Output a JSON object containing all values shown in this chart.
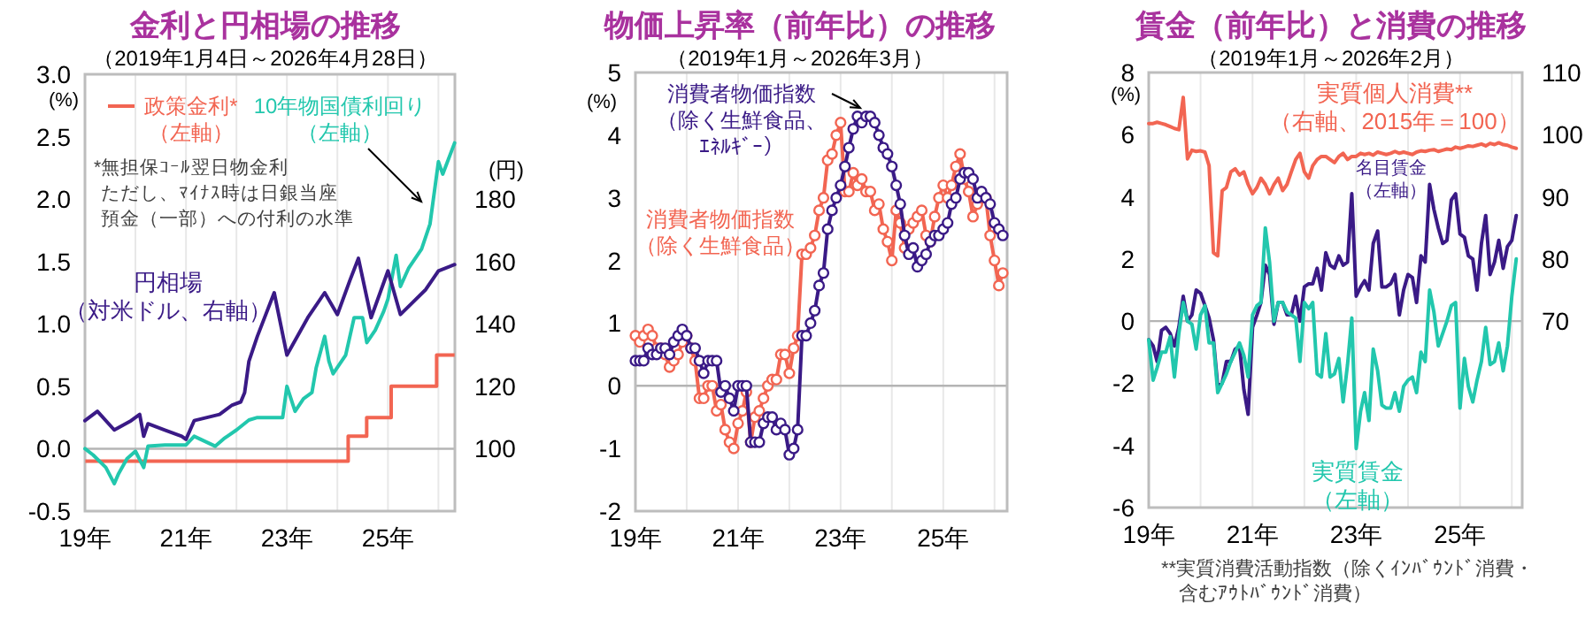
{
  "chart_data": [
    {
      "type": "line",
      "title": "金利と円相場の推移",
      "subtitle": "（2019年1月4日～2026年4月28日）",
      "ylabel": "(%)",
      "y2label": "(円)",
      "xlim": [
        "2019-01-01",
        "2026-04-30"
      ],
      "xticks": [
        {
          "value": "2019-01-01",
          "label": "19年"
        },
        {
          "value": "2020-01-01",
          "label": null
        },
        {
          "value": "2021-01-01",
          "label": "21年"
        },
        {
          "value": "2022-01-01",
          "label": null
        },
        {
          "value": "2023-01-01",
          "label": "23年"
        },
        {
          "value": "2024-01-01",
          "label": null
        },
        {
          "value": "2025-01-01",
          "label": "25年"
        },
        {
          "value": "2026-01-01",
          "label": null
        }
      ],
      "ylim": [
        -0.5,
        3
      ],
      "yticks": [
        {
          "value": -0.5,
          "label": "-0.5"
        },
        {
          "value": 0,
          "label": "0.0"
        },
        {
          "value": 0.5,
          "label": "0.5"
        },
        {
          "value": 1,
          "label": "1.0"
        },
        {
          "value": 1.5,
          "label": "1.5"
        },
        {
          "value": 2,
          "label": "2.0"
        },
        {
          "value": 2.5,
          "label": "2.5"
        },
        {
          "value": 3,
          "label": "3.0"
        }
      ],
      "y2lim": [
        80,
        220
      ],
      "y2ticks": [
        100,
        120,
        140,
        160,
        180
      ],
      "grid": "x",
      "marker": "none",
      "ref_lines": [
        {
          "axis": "y",
          "value": 0,
          "color": "#b4b4b4"
        }
      ],
      "annotations": [
        "*無担保ｺｰﾙ翌日物金利ただし、ﾏｲﾅｽ時は日銀当座預金（一部）への付利の水準"
      ],
      "series": [
        {
          "name": "政策金利*（左軸）",
          "type": "step",
          "color": "#f26552",
          "x": [
            "2019-01-04",
            "2024-03-19",
            "2024-07-31",
            "2025-01-24",
            "2025-12-19",
            "2026-04-28"
          ],
          "values": [
            -0.1,
            0.1,
            0.25,
            0.5,
            0.75,
            0.75
          ]
        },
        {
          "name": "10年物国債利回り（左軸）",
          "color": "#22c7ad",
          "x": [
            "2019-01",
            "2019-03",
            "2019-06",
            "2019-08",
            "2019-09",
            "2019-11",
            "2020-01",
            "2020-03",
            "2020-04",
            "2020-08",
            "2021-01",
            "2021-03",
            "2021-08",
            "2021-10",
            "2022-01",
            "2022-04",
            "2022-06",
            "2022-09",
            "2022-12",
            "2023-01",
            "2023-03",
            "2023-05",
            "2023-07",
            "2023-08",
            "2023-10",
            "2023-11",
            "2023-12",
            "2024-03",
            "2024-05",
            "2024-07",
            "2024-08",
            "2024-10",
            "2024-12",
            "2025-01",
            "2025-03",
            "2025-04",
            "2025-06",
            "2025-09",
            "2025-11",
            "2026-01",
            "2026-02",
            "2026-04-28"
          ],
          "values": [
            0.0,
            -0.05,
            -0.15,
            -0.28,
            -0.2,
            -0.08,
            -0.02,
            -0.15,
            0.02,
            0.03,
            0.03,
            0.1,
            0.02,
            0.08,
            0.15,
            0.23,
            0.25,
            0.25,
            0.25,
            0.5,
            0.3,
            0.4,
            0.45,
            0.65,
            0.9,
            0.7,
            0.6,
            0.75,
            1.05,
            1.05,
            0.85,
            0.95,
            1.1,
            1.2,
            1.55,
            1.3,
            1.45,
            1.6,
            1.8,
            2.3,
            2.2,
            2.45
          ]
        },
        {
          "name": "円相場（対米ドル、右軸）",
          "color": "#3a1a86",
          "axis": "y2",
          "x": [
            "2019-01",
            "2019-04",
            "2019-08",
            "2019-12",
            "2020-02",
            "2020-03",
            "2020-04",
            "2020-08",
            "2020-12",
            "2021-01",
            "2021-03",
            "2021-06",
            "2021-09",
            "2021-12",
            "2022-02",
            "2022-03",
            "2022-04",
            "2022-06",
            "2022-10",
            "2023-01",
            "2023-06",
            "2023-10",
            "2024-01",
            "2024-04",
            "2024-06",
            "2024-09",
            "2025-01",
            "2025-04",
            "2025-07",
            "2025-10",
            "2026-01",
            "2026-04-28"
          ],
          "values": [
            109,
            112,
            106,
            109,
            111,
            104,
            108,
            106,
            104,
            103,
            109,
            110,
            111,
            114,
            115,
            118,
            128,
            136,
            150,
            130,
            142,
            150,
            143,
            154,
            161,
            142,
            157,
            143,
            147,
            151,
            157,
            159
          ]
        }
      ]
    },
    {
      "type": "line",
      "title": "物価上昇率（前年比）の推移",
      "subtitle": "（2019年1月～2026年3月）",
      "ylabel": "(%)",
      "xlim": [
        "2019-01-01",
        "2026-04-01"
      ],
      "xticks": [
        {
          "value": "2019-01-01",
          "label": "19年"
        },
        {
          "value": "2020-01-01",
          "label": null
        },
        {
          "value": "2021-01-01",
          "label": "21年"
        },
        {
          "value": "2022-01-01",
          "label": null
        },
        {
          "value": "2023-01-01",
          "label": "23年"
        },
        {
          "value": "2024-01-01",
          "label": null
        },
        {
          "value": "2025-01-01",
          "label": "25年"
        },
        {
          "value": "2026-01-01",
          "label": null
        }
      ],
      "ylim": [
        -2,
        5
      ],
      "yticks": [
        -2,
        -1,
        0,
        1,
        2,
        3,
        4,
        5
      ],
      "grid": "x",
      "marker": "circle",
      "ref_lines": [
        {
          "axis": "y",
          "value": 0,
          "color": "#b4b4b4"
        }
      ],
      "x": [
        "2019-01",
        "2019-02",
        "2019-03",
        "2019-04",
        "2019-05",
        "2019-06",
        "2019-07",
        "2019-08",
        "2019-09",
        "2019-10",
        "2019-11",
        "2019-12",
        "2020-01",
        "2020-02",
        "2020-03",
        "2020-04",
        "2020-05",
        "2020-06",
        "2020-07",
        "2020-08",
        "2020-09",
        "2020-10",
        "2020-11",
        "2020-12",
        "2021-01",
        "2021-02",
        "2021-03",
        "2021-04",
        "2021-05",
        "2021-06",
        "2021-07",
        "2021-08",
        "2021-09",
        "2021-10",
        "2021-11",
        "2021-12",
        "2022-01",
        "2022-02",
        "2022-03",
        "2022-04",
        "2022-05",
        "2022-06",
        "2022-07",
        "2022-08",
        "2022-09",
        "2022-10",
        "2022-11",
        "2022-12",
        "2023-01",
        "2023-02",
        "2023-03",
        "2023-04",
        "2023-05",
        "2023-06",
        "2023-07",
        "2023-08",
        "2023-09",
        "2023-10",
        "2023-11",
        "2023-12",
        "2024-01",
        "2024-02",
        "2024-03",
        "2024-04",
        "2024-05",
        "2024-06",
        "2024-07",
        "2024-08",
        "2024-09",
        "2024-10",
        "2024-11",
        "2024-12",
        "2025-01",
        "2025-02",
        "2025-03",
        "2025-04",
        "2025-05",
        "2025-06",
        "2025-07",
        "2025-08",
        "2025-09",
        "2025-10",
        "2025-11",
        "2025-12",
        "2026-01",
        "2026-02",
        "2026-03"
      ],
      "series": [
        {
          "name": "消費者物価指数（除く生鮮食品）",
          "color": "#f26552",
          "values": [
            0.8,
            0.7,
            0.8,
            0.9,
            0.8,
            0.6,
            0.6,
            0.5,
            0.3,
            0.4,
            0.5,
            0.7,
            0.8,
            0.6,
            0.4,
            -0.2,
            -0.2,
            0.0,
            0.0,
            -0.4,
            -0.3,
            -0.7,
            -0.9,
            -1.0,
            -0.6,
            -0.4,
            -0.1,
            -0.9,
            -0.5,
            -0.4,
            -0.2,
            0.0,
            0.1,
            0.1,
            0.5,
            0.5,
            0.2,
            0.6,
            0.8,
            2.1,
            2.1,
            2.2,
            2.4,
            2.8,
            3.0,
            3.6,
            3.7,
            4.0,
            4.2,
            3.1,
            3.1,
            3.4,
            3.2,
            3.3,
            3.1,
            3.1,
            2.8,
            2.9,
            2.5,
            2.3,
            2.0,
            2.8,
            2.6,
            2.2,
            2.5,
            2.6,
            2.7,
            2.8,
            2.4,
            2.3,
            2.7,
            3.0,
            3.2,
            3.0,
            3.2,
            3.5,
            3.7,
            3.3,
            3.1,
            2.7,
            2.9,
            3.0,
            3.0,
            2.4,
            2.0,
            1.6,
            1.8
          ]
        },
        {
          "name": "消費者物価指数（除く生鮮食品、ｴﾈﾙｷﾞｰ）",
          "color": "#3a1a86",
          "values": [
            0.4,
            0.4,
            0.4,
            0.6,
            0.5,
            0.5,
            0.6,
            0.6,
            0.5,
            0.7,
            0.8,
            0.9,
            0.8,
            0.6,
            0.6,
            0.4,
            0.2,
            0.4,
            0.4,
            0.4,
            -0.1,
            0.0,
            -0.2,
            -0.4,
            0.0,
            0.0,
            0.0,
            -0.9,
            -0.9,
            -0.9,
            -0.6,
            -0.5,
            -0.5,
            -0.7,
            -0.6,
            -0.7,
            -1.1,
            -1.0,
            -0.7,
            0.8,
            0.8,
            1.0,
            1.2,
            1.6,
            1.8,
            2.5,
            2.8,
            3.0,
            3.2,
            3.5,
            3.8,
            4.1,
            4.3,
            4.2,
            4.3,
            4.3,
            4.2,
            4.0,
            3.8,
            3.7,
            3.5,
            3.2,
            2.9,
            2.4,
            2.1,
            2.2,
            1.9,
            2.0,
            2.1,
            2.3,
            2.4,
            2.4,
            2.5,
            2.6,
            2.9,
            3.0,
            3.3,
            3.4,
            3.4,
            3.3,
            3.0,
            3.1,
            3.0,
            2.9,
            2.6,
            2.5,
            2.4
          ]
        }
      ]
    },
    {
      "type": "line",
      "title": "賃金（前年比）と消費の推移",
      "subtitle": "（2019年1月～2026年2月）",
      "ylabel": "(%)",
      "xlim": [
        "2019-01-01",
        "2026-03-15"
      ],
      "xticks": [
        {
          "value": "2019-01-01",
          "label": "19年"
        },
        {
          "value": "2020-01-01",
          "label": null
        },
        {
          "value": "2021-01-01",
          "label": "21年"
        },
        {
          "value": "2022-01-01",
          "label": null
        },
        {
          "value": "2023-01-01",
          "label": "23年"
        },
        {
          "value": "2024-01-01",
          "label": null
        },
        {
          "value": "2025-01-01",
          "label": "25年"
        },
        {
          "value": "2026-01-01",
          "label": null
        }
      ],
      "ylim": [
        -6,
        8
      ],
      "yticks": [
        -6,
        -4,
        -2,
        0,
        2,
        4,
        6,
        8
      ],
      "y2lim": [
        40,
        110
      ],
      "y2ticks": [
        70,
        80,
        90,
        100,
        110
      ],
      "grid": "x",
      "marker": "none",
      "ref_lines": [
        {
          "axis": "y",
          "value": 0,
          "color": "#b4b4b4"
        }
      ],
      "annotations": [
        "**実質消費活動指数（除くｲﾝﾊﾞｳﾝﾄﾞ消費・含むｱｳﾄﾊﾞｳﾝﾄﾞ消費）"
      ],
      "x": [
        "2019-01",
        "2019-02",
        "2019-03",
        "2019-04",
        "2019-05",
        "2019-06",
        "2019-07",
        "2019-08",
        "2019-09",
        "2019-10",
        "2019-11",
        "2019-12",
        "2020-01",
        "2020-02",
        "2020-03",
        "2020-04",
        "2020-05",
        "2020-06",
        "2020-07",
        "2020-08",
        "2020-09",
        "2020-10",
        "2020-11",
        "2020-12",
        "2021-01",
        "2021-02",
        "2021-03",
        "2021-04",
        "2021-05",
        "2021-06",
        "2021-07",
        "2021-08",
        "2021-09",
        "2021-10",
        "2021-11",
        "2021-12",
        "2022-01",
        "2022-02",
        "2022-03",
        "2022-04",
        "2022-05",
        "2022-06",
        "2022-07",
        "2022-08",
        "2022-09",
        "2022-10",
        "2022-11",
        "2022-12",
        "2023-01",
        "2023-02",
        "2023-03",
        "2023-04",
        "2023-05",
        "2023-06",
        "2023-07",
        "2023-08",
        "2023-09",
        "2023-10",
        "2023-11",
        "2023-12",
        "2024-01",
        "2024-02",
        "2024-03",
        "2024-04",
        "2024-05",
        "2024-06",
        "2024-07",
        "2024-08",
        "2024-09",
        "2024-10",
        "2024-11",
        "2024-12",
        "2025-01",
        "2025-02",
        "2025-03",
        "2025-04",
        "2025-05",
        "2025-06",
        "2025-07",
        "2025-08",
        "2025-09",
        "2025-10",
        "2025-11",
        "2025-12",
        "2026-01",
        "2026-02"
      ],
      "series": [
        {
          "name": "実質個人消費**（右軸、2015年＝100）",
          "color": "#f26552",
          "axis": "y2",
          "values": [
            101.8,
            101.8,
            102,
            101.8,
            101.6,
            101.3,
            101,
            100.8,
            106,
            96.1,
            97.5,
            97.3,
            97.4,
            97.2,
            95,
            81,
            80.5,
            91,
            91.5,
            94,
            94.5,
            93.5,
            94,
            92,
            90.5,
            91.5,
            93,
            92,
            90.5,
            92,
            93,
            91,
            92,
            94,
            96,
            97,
            94,
            93,
            95,
            96,
            96.5,
            96.5,
            96,
            95.5,
            96.5,
            97,
            96,
            96.5,
            96.5,
            97,
            96.8,
            97,
            96.7,
            97.2,
            97,
            96.8,
            97,
            97.3,
            97,
            97.2,
            97,
            96.8,
            97.2,
            97.4,
            97.3,
            97.5,
            97.6,
            97.3,
            97.5,
            97.7,
            97.6,
            98,
            97.8,
            98,
            98.2,
            98.1,
            98.3,
            98.5,
            98.2,
            98.6,
            98.4,
            98.7,
            98.4,
            98.3,
            98.0,
            97.8
          ]
        },
        {
          "name": "名目賃金（左軸）",
          "color": "#3a1a86",
          "values": [
            -0.6,
            -0.8,
            -1.3,
            -0.3,
            -0.2,
            -0.4,
            -0.8,
            -0.2,
            0.8,
            0.0,
            0.2,
            1.0,
            0.9,
            0.5,
            0.1,
            -0.6,
            -2.1,
            -2.0,
            -1.3,
            -1.3,
            -0.9,
            -0.8,
            -2.2,
            -3.0,
            -0.2,
            0.2,
            0.6,
            1.8,
            1.5,
            -0.1,
            0.6,
            0.6,
            0.2,
            0.2,
            0.8,
            0.0,
            1.1,
            1.2,
            1.2,
            1.7,
            1.0,
            2.2,
            1.8,
            1.7,
            2.1,
            1.8,
            1.9,
            4.1,
            0.8,
            1.1,
            1.3,
            1.0,
            2.5,
            2.9,
            1.1,
            1.1,
            1.2,
            1.5,
            0.2,
            1.0,
            1.5,
            1.4,
            0.6,
            2.1,
            1.9,
            4.4,
            3.6,
            3.0,
            2.5,
            2.6,
            3.9,
            4.1,
            2.8,
            2.7,
            2.1,
            2.0,
            1.0,
            2.5,
            3.4,
            1.5,
            1.9,
            2.6,
            1.7,
            2.4,
            2.6,
            3.4
          ]
        },
        {
          "name": "実質賃金（左軸）",
          "color": "#22c7ad",
          "values": [
            -0.6,
            -1.9,
            -1.5,
            -1.0,
            -1.0,
            -0.5,
            -1.8,
            -0.4,
            0.6,
            0.0,
            -0.1,
            -0.9,
            0.2,
            0.5,
            -0.7,
            -0.7,
            -2.3,
            -2.0,
            -1.7,
            -1.3,
            -1.0,
            -0.7,
            -1.1,
            -1.8,
            0.2,
            0.5,
            0.6,
            3.0,
            1.9,
            0.0,
            0.6,
            0.6,
            0.3,
            0.2,
            0.1,
            -1.3,
            0.6,
            0.4,
            0.6,
            -1.7,
            -1.8,
            -0.4,
            -1.8,
            -1.7,
            -1.2,
            -2.6,
            -1.4,
            0.1,
            -4.1,
            -2.9,
            -2.3,
            -3.2,
            -0.9,
            -1.6,
            -2.7,
            -2.8,
            -2.8,
            -2.3,
            -2.9,
            -2.1,
            -1.9,
            -1.8,
            -2.3,
            -1.0,
            -1.3,
            1.0,
            0.3,
            -0.8,
            -0.4,
            0.0,
            0.5,
            0.6,
            -2.8,
            -1.2,
            -2.1,
            -2.6,
            -1.9,
            -1.3,
            -0.2,
            -1.4,
            -1.3,
            -0.7,
            -1.6,
            -0.8,
            0.8,
            2.0
          ]
        }
      ]
    }
  ]
}
